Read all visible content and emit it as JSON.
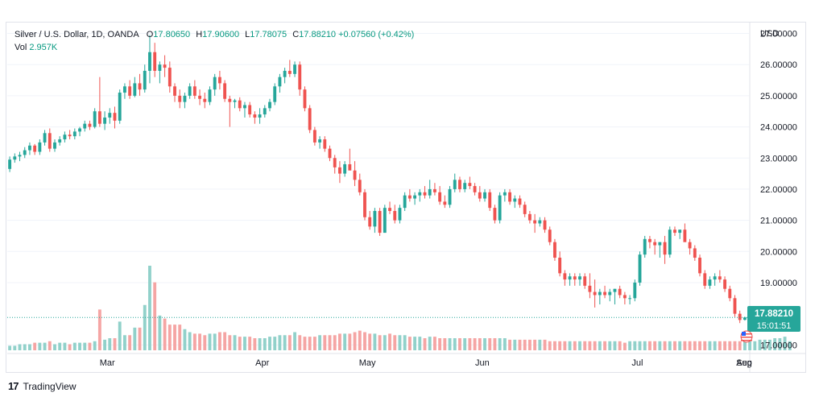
{
  "header": {
    "symbol": "Silver / U.S. Dollar, 1D, OANDA",
    "o_label": "O",
    "o": "17.80650",
    "h_label": "H",
    "h": "17.90600",
    "l_label": "L",
    "l": "17.78075",
    "c_label": "C",
    "c": "17.88210",
    "change": "+0.07560 (+0.42%)",
    "vol_label": "Vol",
    "vol": "2.957K"
  },
  "price_tag": {
    "price": "17.88210",
    "countdown": "15:01:51"
  },
  "footer": {
    "brand": "TradingView"
  },
  "colors": {
    "up": "#26a69a",
    "down": "#ef5350",
    "vol_up": "#91d1ca",
    "vol_down": "#f5a5a4",
    "grid": "#f0f3fa"
  },
  "chart_data": {
    "type": "candlestick",
    "currency_label": "USD",
    "y_ticks": [
      "27.00000",
      "26.00000",
      "25.00000",
      "24.00000",
      "23.00000",
      "22.00000",
      "21.00000",
      "20.00000",
      "19.00000",
      "17.00000"
    ],
    "ylim": [
      16.75,
      27.35
    ],
    "x_ticks": [
      "Mar",
      "Apr",
      "May",
      "Jun",
      "Jul",
      "Aug",
      "Sep"
    ],
    "last_price": 17.8821,
    "candles": [
      [
        22.65,
        23.05,
        22.55,
        22.95
      ],
      [
        22.95,
        23.15,
        22.85,
        23.05
      ],
      [
        23.05,
        23.2,
        22.9,
        23.1
      ],
      [
        23.1,
        23.35,
        23.0,
        23.25
      ],
      [
        23.25,
        23.5,
        23.1,
        23.4
      ],
      [
        23.4,
        23.45,
        23.1,
        23.2
      ],
      [
        23.2,
        23.6,
        23.1,
        23.5
      ],
      [
        23.5,
        23.9,
        23.4,
        23.8
      ],
      [
        23.8,
        23.95,
        23.2,
        23.3
      ],
      [
        23.3,
        23.6,
        23.2,
        23.5
      ],
      [
        23.5,
        23.7,
        23.4,
        23.6
      ],
      [
        23.6,
        23.85,
        23.5,
        23.75
      ],
      [
        23.75,
        23.9,
        23.6,
        23.7
      ],
      [
        23.7,
        23.95,
        23.6,
        23.85
      ],
      [
        23.85,
        24.0,
        23.7,
        23.95
      ],
      [
        23.95,
        24.2,
        23.85,
        24.1
      ],
      [
        24.1,
        24.2,
        23.9,
        24.0
      ],
      [
        24.0,
        24.6,
        23.95,
        24.5
      ],
      [
        24.5,
        25.6,
        24.0,
        24.1
      ],
      [
        24.1,
        24.5,
        23.9,
        24.3
      ],
      [
        24.3,
        24.6,
        24.1,
        24.45
      ],
      [
        24.45,
        24.65,
        23.95,
        24.2
      ],
      [
        24.2,
        25.2,
        24.1,
        25.1
      ],
      [
        25.1,
        25.4,
        24.9,
        25.3
      ],
      [
        25.3,
        25.5,
        24.9,
        25.0
      ],
      [
        25.0,
        25.6,
        24.95,
        25.4
      ],
      [
        25.4,
        25.7,
        25.0,
        25.2
      ],
      [
        25.2,
        26.0,
        25.1,
        25.8
      ],
      [
        25.8,
        26.95,
        25.4,
        26.4
      ],
      [
        26.4,
        26.7,
        25.6,
        25.8
      ],
      [
        25.8,
        26.1,
        25.4,
        26.0
      ],
      [
        26.0,
        26.3,
        25.6,
        25.9
      ],
      [
        25.9,
        26.1,
        25.1,
        25.3
      ],
      [
        25.3,
        25.4,
        24.8,
        25.0
      ],
      [
        25.0,
        25.2,
        24.6,
        24.8
      ],
      [
        24.8,
        25.1,
        24.6,
        25.0
      ],
      [
        25.0,
        25.4,
        24.9,
        25.3
      ],
      [
        25.3,
        25.5,
        24.9,
        25.0
      ],
      [
        25.0,
        25.2,
        24.7,
        24.9
      ],
      [
        24.9,
        25.1,
        24.6,
        24.8
      ],
      [
        24.8,
        25.3,
        24.7,
        25.2
      ],
      [
        25.2,
        25.7,
        25.0,
        25.6
      ],
      [
        25.6,
        25.8,
        25.2,
        25.4
      ],
      [
        25.4,
        25.5,
        24.8,
        24.9
      ],
      [
        24.9,
        25.0,
        24.0,
        24.8
      ],
      [
        24.8,
        24.9,
        24.6,
        24.85
      ],
      [
        24.85,
        24.95,
        24.5,
        24.6
      ],
      [
        24.6,
        24.8,
        24.3,
        24.7
      ],
      [
        24.7,
        24.8,
        24.3,
        24.4
      ],
      [
        24.4,
        24.5,
        24.1,
        24.3
      ],
      [
        24.3,
        24.6,
        24.1,
        24.4
      ],
      [
        24.4,
        24.7,
        24.3,
        24.6
      ],
      [
        24.6,
        24.9,
        24.5,
        24.8
      ],
      [
        24.8,
        25.4,
        24.7,
        25.3
      ],
      [
        25.3,
        25.7,
        25.1,
        25.6
      ],
      [
        25.6,
        25.9,
        25.4,
        25.8
      ],
      [
        25.8,
        26.15,
        25.6,
        25.7
      ],
      [
        25.7,
        26.1,
        25.6,
        26.0
      ],
      [
        26.0,
        26.1,
        25.0,
        25.2
      ],
      [
        25.2,
        25.3,
        24.5,
        24.6
      ],
      [
        24.6,
        24.7,
        23.8,
        23.9
      ],
      [
        23.9,
        24.0,
        23.4,
        23.5
      ],
      [
        23.5,
        23.7,
        23.3,
        23.6
      ],
      [
        23.6,
        23.7,
        23.2,
        23.3
      ],
      [
        23.3,
        23.4,
        22.9,
        23.0
      ],
      [
        23.0,
        23.1,
        22.5,
        22.7
      ],
      [
        22.7,
        22.9,
        22.2,
        22.5
      ],
      [
        22.5,
        22.9,
        22.4,
        22.8
      ],
      [
        22.8,
        23.3,
        22.7,
        22.6
      ],
      [
        22.6,
        22.9,
        22.1,
        22.3
      ],
      [
        22.3,
        22.5,
        21.8,
        21.9
      ],
      [
        21.9,
        22.0,
        21.0,
        21.1
      ],
      [
        21.1,
        21.3,
        20.7,
        20.8
      ],
      [
        20.8,
        21.4,
        20.6,
        21.3
      ],
      [
        21.3,
        21.4,
        20.5,
        20.6
      ],
      [
        20.6,
        21.5,
        20.6,
        21.4
      ],
      [
        21.4,
        21.6,
        21.2,
        21.3
      ],
      [
        21.3,
        21.5,
        20.9,
        21.0
      ],
      [
        21.0,
        21.5,
        20.9,
        21.4
      ],
      [
        21.4,
        21.9,
        21.3,
        21.8
      ],
      [
        21.8,
        22.0,
        21.6,
        21.7
      ],
      [
        21.7,
        21.9,
        21.5,
        21.8
      ],
      [
        21.8,
        22.0,
        21.6,
        21.9
      ],
      [
        21.9,
        22.1,
        21.7,
        21.8
      ],
      [
        21.8,
        22.3,
        21.7,
        22.0
      ],
      [
        22.0,
        22.2,
        21.8,
        21.9
      ],
      [
        21.9,
        22.1,
        21.5,
        21.6
      ],
      [
        21.6,
        21.8,
        21.4,
        21.5
      ],
      [
        21.5,
        22.1,
        21.4,
        22.0
      ],
      [
        22.0,
        22.5,
        21.9,
        22.3
      ],
      [
        22.3,
        22.4,
        21.9,
        22.0
      ],
      [
        22.0,
        22.3,
        21.9,
        22.2
      ],
      [
        22.2,
        22.4,
        22.0,
        22.1
      ],
      [
        22.1,
        22.2,
        21.8,
        21.9
      ],
      [
        21.9,
        22.1,
        21.6,
        21.7
      ],
      [
        21.7,
        22.0,
        21.6,
        21.9
      ],
      [
        21.9,
        22.0,
        21.3,
        21.4
      ],
      [
        21.4,
        21.5,
        20.9,
        21.0
      ],
      [
        21.0,
        21.9,
        20.9,
        21.8
      ],
      [
        21.8,
        22.0,
        21.6,
        21.9
      ],
      [
        21.9,
        22.0,
        21.5,
        21.6
      ],
      [
        21.6,
        21.8,
        21.4,
        21.7
      ],
      [
        21.7,
        21.8,
        21.4,
        21.5
      ],
      [
        21.5,
        21.6,
        21.1,
        21.2
      ],
      [
        21.2,
        21.3,
        20.9,
        21.0
      ],
      [
        21.0,
        21.2,
        20.6,
        20.9
      ],
      [
        20.9,
        21.1,
        20.8,
        21.0
      ],
      [
        21.0,
        21.1,
        20.6,
        20.7
      ],
      [
        20.7,
        20.8,
        20.2,
        20.3
      ],
      [
        20.3,
        20.4,
        19.7,
        19.8
      ],
      [
        19.8,
        20.0,
        19.2,
        19.3
      ],
      [
        19.3,
        19.4,
        18.9,
        19.1
      ],
      [
        19.1,
        19.3,
        18.9,
        19.2
      ],
      [
        19.2,
        19.3,
        18.9,
        19.1
      ],
      [
        19.1,
        19.3,
        18.9,
        19.2
      ],
      [
        19.2,
        19.3,
        18.8,
        18.9
      ],
      [
        18.9,
        19.3,
        18.5,
        18.7
      ],
      [
        18.7,
        19.1,
        18.2,
        18.6
      ],
      [
        18.6,
        18.8,
        18.3,
        18.7
      ],
      [
        18.7,
        18.9,
        18.5,
        18.6
      ],
      [
        18.6,
        18.8,
        18.4,
        18.7
      ],
      [
        18.7,
        18.8,
        18.3,
        18.8
      ],
      [
        18.8,
        18.9,
        18.5,
        18.6
      ],
      [
        18.6,
        18.7,
        18.3,
        18.5
      ],
      [
        18.5,
        18.6,
        18.3,
        18.5
      ],
      [
        18.5,
        19.1,
        18.4,
        19.0
      ],
      [
        19.0,
        20.0,
        18.9,
        19.9
      ],
      [
        19.9,
        20.5,
        19.8,
        20.4
      ],
      [
        20.4,
        20.5,
        20.1,
        20.3
      ],
      [
        20.3,
        20.4,
        19.9,
        20.2
      ],
      [
        20.2,
        20.3,
        19.8,
        20.3
      ],
      [
        20.3,
        20.5,
        19.6,
        19.9
      ],
      [
        19.9,
        20.8,
        19.8,
        20.7
      ],
      [
        20.7,
        20.8,
        20.5,
        20.6
      ],
      [
        20.6,
        20.7,
        20.4,
        20.7
      ],
      [
        20.7,
        20.9,
        20.4,
        20.3
      ],
      [
        20.3,
        20.4,
        19.9,
        20.1
      ],
      [
        20.1,
        20.2,
        19.7,
        19.8
      ],
      [
        19.8,
        19.9,
        19.2,
        19.3
      ],
      [
        19.3,
        19.4,
        18.8,
        18.9
      ],
      [
        18.9,
        19.2,
        18.8,
        19.1
      ],
      [
        19.1,
        19.3,
        18.9,
        19.2
      ],
      [
        19.2,
        19.4,
        19.0,
        19.1
      ],
      [
        19.1,
        19.2,
        18.7,
        18.8
      ],
      [
        18.8,
        18.9,
        18.4,
        18.5
      ],
      [
        18.5,
        18.6,
        17.9,
        18.0
      ],
      [
        18.0,
        18.1,
        17.7,
        17.8
      ],
      [
        17.8065,
        17.906,
        17.78075,
        17.8821
      ]
    ],
    "volumes": [
      3,
      3,
      4,
      4,
      4,
      5,
      5,
      5,
      6,
      4,
      5,
      5,
      4,
      5,
      5,
      5,
      5,
      6,
      27,
      7,
      8,
      8,
      19,
      10,
      10,
      15,
      15,
      30,
      56,
      45,
      23,
      21,
      17,
      17,
      17,
      14,
      12,
      11,
      11,
      10,
      11,
      11,
      12,
      12,
      10,
      10,
      9,
      9,
      9,
      8,
      8,
      8,
      9,
      9,
      10,
      10,
      10,
      12,
      10,
      9,
      9,
      9,
      10,
      10,
      10,
      10,
      11,
      11,
      11,
      12,
      13,
      12,
      11,
      11,
      10,
      10,
      11,
      10,
      10,
      10,
      9,
      9,
      9,
      8,
      9,
      9,
      8,
      8,
      8,
      8,
      8,
      8,
      8,
      8,
      8,
      8,
      8,
      8,
      8,
      8,
      7,
      7,
      7,
      7,
      7,
      7,
      7,
      7,
      6,
      6,
      6,
      6,
      6,
      6,
      6,
      6,
      6,
      6,
      6,
      6,
      6,
      6,
      6,
      5,
      6,
      6,
      6,
      6,
      6,
      6,
      6,
      6,
      6,
      6,
      6,
      6,
      6,
      6,
      6,
      6,
      6,
      6,
      6,
      6,
      6,
      6,
      6,
      6,
      6,
      6,
      7,
      7,
      7,
      8,
      8,
      9,
      6
    ]
  }
}
